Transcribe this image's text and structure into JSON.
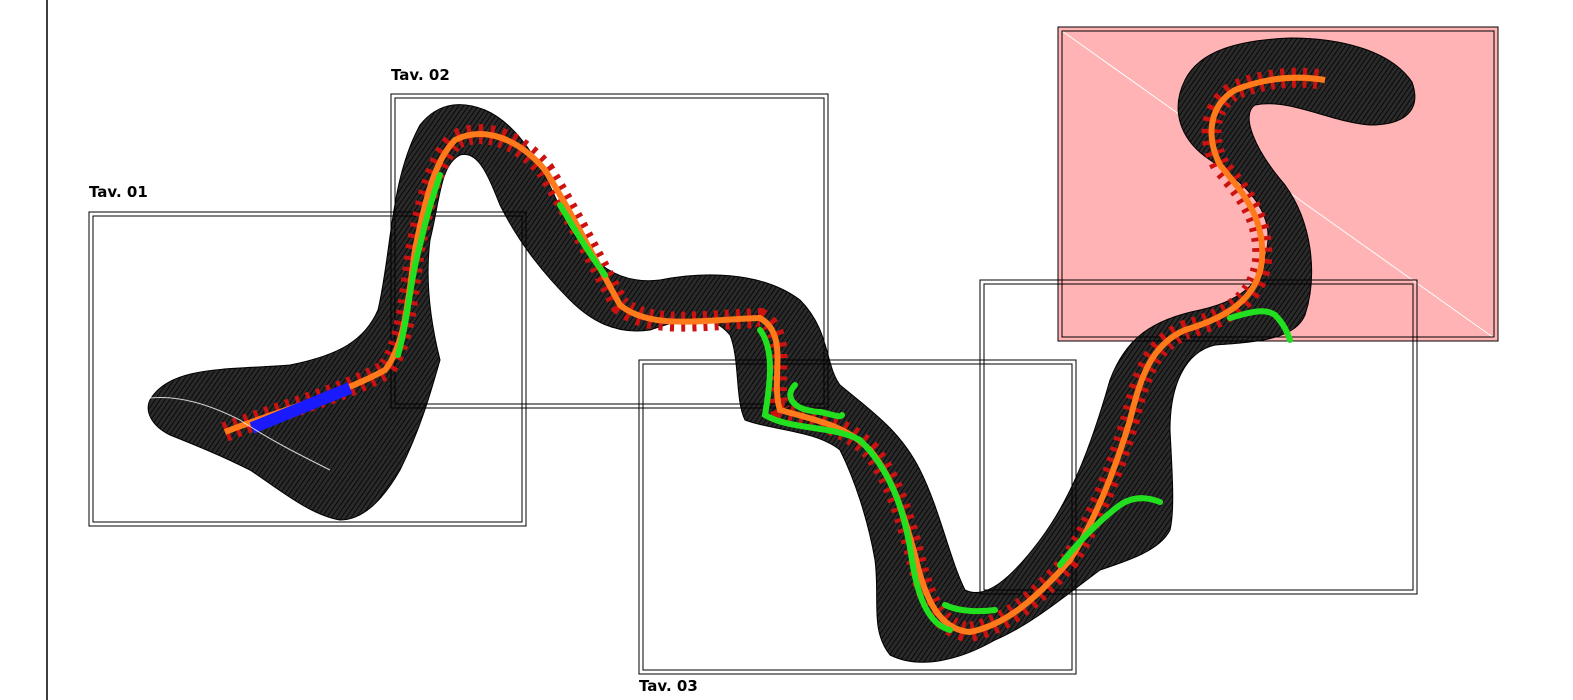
{
  "sheets": [
    {
      "label": "Tav. 01"
    },
    {
      "label": "Tav. 02"
    },
    {
      "label": "Tav. 03"
    },
    {
      "label": ""
    },
    {
      "label": ""
    }
  ],
  "colors": {
    "terrain": "#111111",
    "road_axis": "#ff7a1a",
    "green_segment": "#22e01f",
    "blue_segment": "#1a1aff",
    "red_markers": "#cc1111",
    "highlight_sheet": "#ff9a9a",
    "frame": "#000000"
  }
}
